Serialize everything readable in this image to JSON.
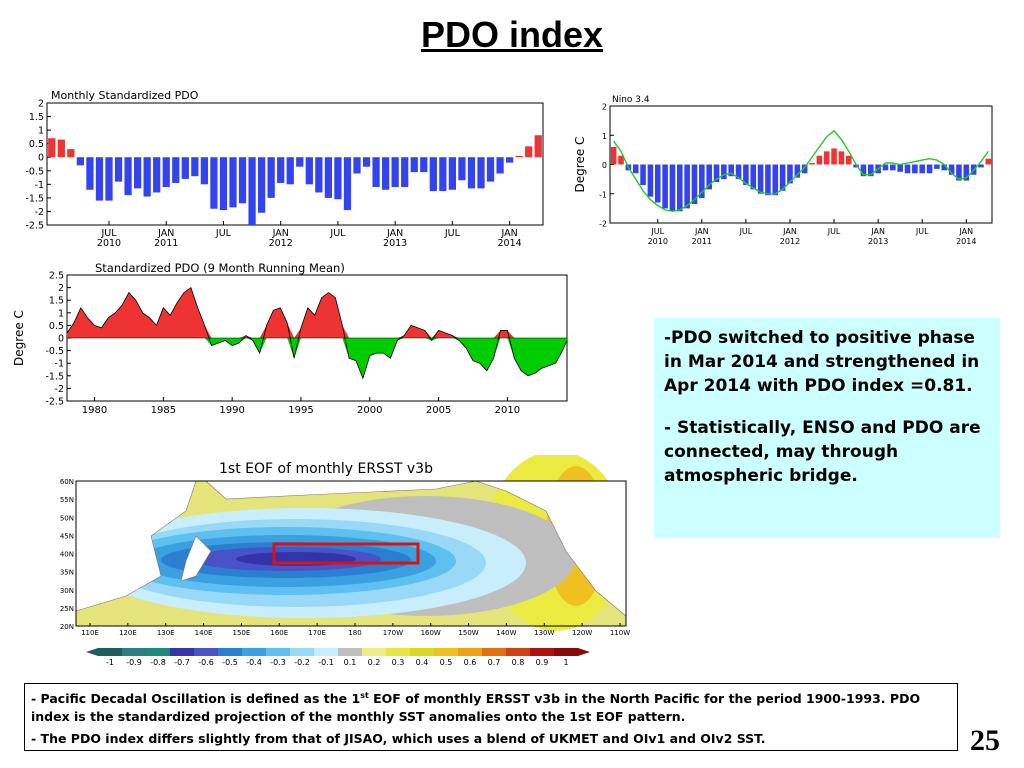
{
  "slide": {
    "title": "PDO index",
    "page_number": "25"
  },
  "notes": {
    "item1": "-PDO switched to positive phase in Mar 2014 and strengthened in Apr 2014 with PDO index =0.81.",
    "item2": "- Statistically, ENSO and PDO are connected, may through atmospheric bridge."
  },
  "footer": {
    "line1_pre": "- Pacific Decadal Oscillation is defined as the 1",
    "line1_sup": "st",
    "line1_post": " EOF of monthly ERSST v3b in the North Pacific for the period 1900-1993. PDO index is the standardized projection of the monthly SST anomalies onto  the 1st EOF pattern.",
    "line2": "- The PDO index differs slightly from that of JISAO, which uses a blend of UKMET and OIv1 and OIv2 SST."
  },
  "colors": {
    "positive": "#ee3333",
    "negative": "#3344ee",
    "running_pos": "#ee3333",
    "running_neg": "#00cc00",
    "nino_line": "#22cc22",
    "box_fill": "#ccffff",
    "eof_box": "#dd1111"
  },
  "chart_data": [
    {
      "id": "monthly-pdo",
      "type": "bar",
      "title": "Monthly Standardized PDO",
      "ylabel": "",
      "ylim": [
        -2.5,
        2
      ],
      "yticks": [
        "2",
        "1.5",
        "1",
        "0.5",
        "0",
        "-0.5",
        "-1",
        "-1.5",
        "-2",
        "-2.5"
      ],
      "x_start": "2010-01",
      "x_end": "2014-04",
      "xtick_labels": [
        {
          "month": "JUL",
          "year": "2010"
        },
        {
          "month": "JAN",
          "year": "2011"
        },
        {
          "month": "JUL",
          "year": ""
        },
        {
          "month": "JAN",
          "year": "2012"
        },
        {
          "month": "JUL",
          "year": ""
        },
        {
          "month": "JAN",
          "year": "2013"
        },
        {
          "month": "JUL",
          "year": ""
        },
        {
          "month": "JAN",
          "year": "2014"
        }
      ],
      "values": [
        0.7,
        0.65,
        0.3,
        -0.3,
        -1.2,
        -1.6,
        -1.6,
        -0.9,
        -1.4,
        -1.15,
        -1.45,
        -1.3,
        -1.1,
        -0.95,
        -0.8,
        -0.7,
        -1.0,
        -1.9,
        -1.95,
        -1.85,
        -1.7,
        -2.5,
        -2.05,
        -1.5,
        -0.95,
        -1.0,
        -0.35,
        -1.0,
        -1.3,
        -1.5,
        -1.55,
        -1.95,
        -0.6,
        -0.35,
        -1.1,
        -1.2,
        -1.1,
        -1.1,
        -0.55,
        -0.55,
        -1.25,
        -1.25,
        -1.2,
        -0.85,
        -1.15,
        -1.15,
        -0.9,
        -0.6,
        -0.2,
        0.05,
        0.4,
        0.81
      ]
    },
    {
      "id": "nino34",
      "type": "bar",
      "title": "Nino 3.4",
      "ylabel": "Degree C",
      "ylim": [
        -2,
        2
      ],
      "yticks": [
        "2",
        "1",
        "0",
        "-1",
        "-2"
      ],
      "x_start": "2010-01",
      "x_end": "2014-04",
      "xtick_labels": [
        {
          "month": "JUL",
          "year": "2010"
        },
        {
          "month": "JAN",
          "year": "2011"
        },
        {
          "month": "JUL",
          "year": ""
        },
        {
          "month": "JAN",
          "year": "2012"
        },
        {
          "month": "JUL",
          "year": ""
        },
        {
          "month": "JAN",
          "year": "2013"
        },
        {
          "month": "JUL",
          "year": ""
        },
        {
          "month": "JAN",
          "year": "2014"
        }
      ],
      "values": [
        0.6,
        0.3,
        -0.2,
        -0.3,
        -0.7,
        -1.1,
        -1.3,
        -1.5,
        -1.6,
        -1.6,
        -1.5,
        -1.35,
        -1.15,
        -0.85,
        -0.6,
        -0.5,
        -0.4,
        -0.5,
        -0.7,
        -0.85,
        -1.0,
        -1.05,
        -1.05,
        -0.9,
        -0.65,
        -0.45,
        -0.3,
        0.05,
        0.3,
        0.45,
        0.55,
        0.45,
        0.3,
        -0.1,
        -0.4,
        -0.4,
        -0.3,
        -0.2,
        -0.2,
        -0.25,
        -0.3,
        -0.3,
        -0.3,
        -0.3,
        -0.15,
        -0.2,
        -0.35,
        -0.55,
        -0.55,
        -0.35,
        -0.1,
        0.2
      ],
      "line": [
        0.8,
        0.45,
        -0.1,
        -0.5,
        -0.9,
        -1.2,
        -1.4,
        -1.55,
        -1.6,
        -1.55,
        -1.4,
        -1.2,
        -0.95,
        -0.7,
        -0.5,
        -0.35,
        -0.3,
        -0.45,
        -0.65,
        -0.8,
        -0.95,
        -1.0,
        -1.0,
        -0.85,
        -0.6,
        -0.35,
        -0.1,
        0.25,
        0.6,
        0.95,
        1.15,
        0.85,
        0.45,
        0.0,
        -0.35,
        -0.35,
        -0.15,
        0.05,
        0.05,
        0.0,
        0.05,
        0.1,
        0.15,
        0.2,
        0.15,
        0.0,
        -0.3,
        -0.5,
        -0.45,
        -0.2,
        0.1,
        0.45
      ]
    },
    {
      "id": "running-pdo",
      "type": "area",
      "title": "Standardized PDO (9 Month Running Mean)",
      "ylabel": "Degree C",
      "ylim": [
        -2.5,
        2.5
      ],
      "yticks": [
        "2.5",
        "2",
        "1.5",
        "1",
        "0.5",
        "0",
        "-0.5",
        "-1",
        "-1.5",
        "-2",
        "-2.5"
      ],
      "xlim": [
        1978,
        2014.33
      ],
      "xticks": [
        "1980",
        "1985",
        "1990",
        "1995",
        "2000",
        "2005",
        "2010"
      ],
      "x": [
        1978,
        1978.5,
        1979,
        1979.5,
        1980,
        1980.5,
        1981,
        1981.5,
        1982,
        1982.5,
        1983,
        1983.5,
        1984,
        1984.5,
        1985,
        1985.5,
        1986,
        1986.5,
        1987,
        1987.5,
        1988,
        1988.5,
        1989,
        1989.5,
        1990,
        1990.5,
        1991,
        1991.5,
        1992,
        1992.5,
        1993,
        1993.5,
        1994,
        1994.5,
        1995,
        1995.5,
        1996,
        1996.5,
        1997,
        1997.5,
        1998,
        1998.5,
        1999,
        1999.5,
        2000,
        2000.5,
        2001,
        2001.5,
        2002,
        2002.5,
        2003,
        2003.5,
        2004,
        2004.5,
        2005,
        2005.5,
        2006,
        2006.5,
        2007,
        2007.5,
        2008,
        2008.5,
        2009,
        2009.5,
        2010,
        2010.5,
        2011,
        2011.5,
        2012,
        2012.5,
        2013,
        2013.5,
        2014,
        2014.33
      ],
      "values": [
        0.2,
        0.6,
        1.2,
        0.8,
        0.5,
        0.4,
        0.8,
        1.0,
        1.3,
        1.8,
        1.5,
        1.0,
        0.8,
        0.5,
        1.2,
        0.9,
        1.4,
        1.8,
        2.0,
        1.2,
        0.5,
        -0.3,
        -0.2,
        -0.1,
        -0.3,
        -0.2,
        0.1,
        -0.1,
        -0.6,
        0.5,
        1.1,
        1.2,
        0.6,
        -0.8,
        0.4,
        1.2,
        0.9,
        1.6,
        1.8,
        1.6,
        0.5,
        -0.8,
        -0.9,
        -1.6,
        -0.7,
        -0.6,
        -0.6,
        -0.8,
        -0.1,
        0.1,
        0.5,
        0.4,
        0.3,
        -0.1,
        0.3,
        0.2,
        0.1,
        -0.1,
        -0.4,
        -0.9,
        -1.0,
        -1.3,
        -0.8,
        0.3,
        0.3,
        -0.8,
        -1.3,
        -1.5,
        -1.4,
        -1.2,
        -1.1,
        -1.0,
        -0.5,
        -0.1
      ]
    },
    {
      "id": "eof-map",
      "type": "heatmap",
      "title": "1st EOF of monthly ERSST v3b",
      "lat_labels": [
        "60N",
        "55N",
        "50N",
        "45N",
        "40N",
        "35N",
        "30N",
        "25N",
        "20N"
      ],
      "lon_labels": [
        "110E",
        "120E",
        "130E",
        "140E",
        "150E",
        "160E",
        "170E",
        "180",
        "170W",
        "160W",
        "150W",
        "140W",
        "130W",
        "120W",
        "110W"
      ],
      "colorbar_labels": [
        "-1",
        "-0.9",
        "-0.8",
        "-0.7",
        "-0.6",
        "-0.5",
        "-0.4",
        "-0.3",
        "-0.2",
        "-0.1",
        "0.1",
        "0.2",
        "0.3",
        "0.4",
        "0.5",
        "0.6",
        "0.7",
        "0.8",
        "0.9",
        "1"
      ],
      "colorbar_colors": [
        "#1f5c5c",
        "#2a7f7f",
        "#1e8a7a",
        "#3434aa",
        "#4a52c8",
        "#2b7fd0",
        "#3aa0e0",
        "#5ec0f0",
        "#9ad8f8",
        "#c8eefc",
        "#bebebe",
        "#eeee88",
        "#e6e640",
        "#d8d820",
        "#f0c020",
        "#f0a010",
        "#e07010",
        "#d04010",
        "#b01010",
        "#8a0808"
      ]
    }
  ]
}
